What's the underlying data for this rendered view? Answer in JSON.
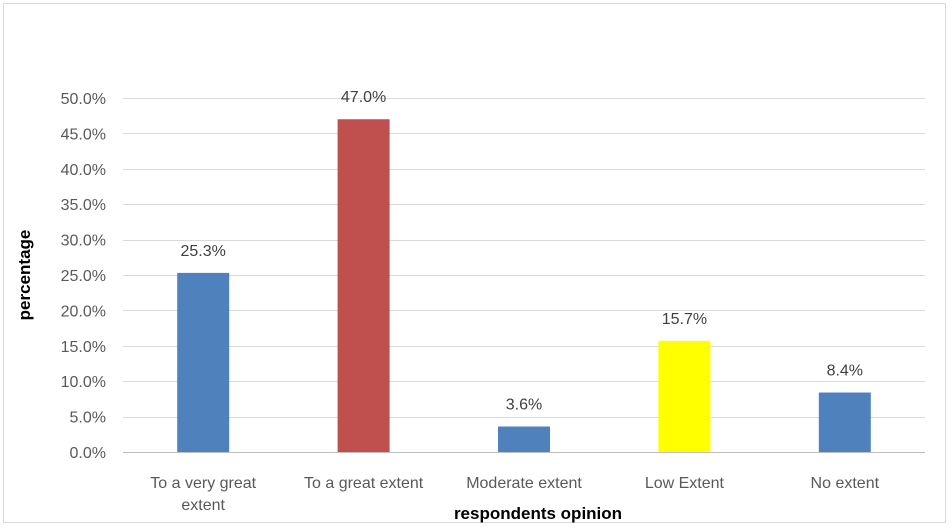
{
  "chart_data": {
    "type": "bar",
    "title": "",
    "xlabel": "respondents opinion",
    "ylabel": "percentage",
    "categories": [
      "To a very great extent",
      "To a great extent",
      "Moderate extent",
      "Low Extent",
      "No extent"
    ],
    "category_lines": [
      [
        "To a very great",
        "extent"
      ],
      [
        "To a great extent"
      ],
      [
        "Moderate extent"
      ],
      [
        "Low Extent"
      ],
      [
        "No extent"
      ]
    ],
    "values": [
      25.3,
      47.0,
      3.6,
      15.7,
      8.4
    ],
    "value_labels": [
      "25.3%",
      "47.0%",
      "3.6%",
      "15.7%",
      "8.4%"
    ],
    "colors": [
      "#4f81bd",
      "#c0504d",
      "#4f81bd",
      "#ffff00",
      "#4f81bd"
    ],
    "ylim": [
      0,
      50
    ],
    "yticks": [
      0,
      5,
      10,
      15,
      20,
      25,
      30,
      35,
      40,
      45,
      50
    ],
    "ytick_labels": [
      "0.0%",
      "5.0%",
      "10.0%",
      "15.0%",
      "20.0%",
      "25.0%",
      "30.0%",
      "35.0%",
      "40.0%",
      "45.0%",
      "50.0%"
    ],
    "grid": true,
    "legend": "none"
  }
}
